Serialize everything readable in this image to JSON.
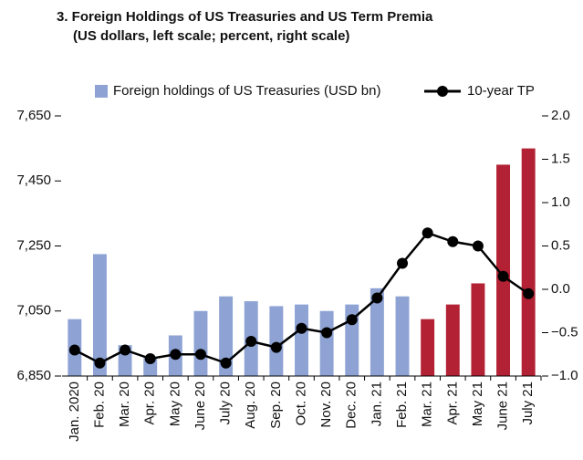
{
  "chart_data": {
    "type": "bar_line",
    "title": "3. Foreign Holdings of US Treasuries and US Term Premia",
    "subtitle": "(US dollars, left scale; percent, right scale)",
    "categories": [
      "Jan. 2020",
      "Feb. 20",
      "Mar. 20",
      "Apr. 20",
      "May 20",
      "June 20",
      "July 20",
      "Aug. 20",
      "Sep. 20",
      "Oct. 20",
      "Nov. 20",
      "Dec. 20",
      "Jan. 21",
      "Feb. 21",
      "Mar. 21",
      "Apr. 21",
      "May 21",
      "June 21",
      "July 21"
    ],
    "series": [
      {
        "name": "Foreign holdings of US Treasuries (USD bn)",
        "type": "bar",
        "color": "#8ea3d4",
        "colors": [
          "#8ea3d4",
          "#8ea3d4",
          "#8ea3d4",
          "#8ea3d4",
          "#8ea3d4",
          "#8ea3d4",
          "#8ea3d4",
          "#8ea3d4",
          "#8ea3d4",
          "#8ea3d4",
          "#8ea3d4",
          "#8ea3d4",
          "#8ea3d4",
          "#8ea3d4",
          "#b22234",
          "#b22234",
          "#b22234",
          "#b22234",
          "#b22234"
        ],
        "values": [
          7025,
          7225,
          6945,
          6905,
          6975,
          7050,
          7095,
          7080,
          7065,
          7070,
          7050,
          7070,
          7120,
          7095,
          7025,
          7070,
          7135,
          7500,
          7550
        ]
      },
      {
        "name": "10-year TP",
        "type": "line",
        "axis": "y2",
        "color": "#000000",
        "values": [
          -0.7,
          -0.85,
          -0.7,
          -0.8,
          -0.75,
          -0.75,
          -0.85,
          -0.6,
          -0.67,
          -0.45,
          -0.5,
          -0.35,
          -0.1,
          0.3,
          0.65,
          0.55,
          0.5,
          0.15,
          -0.05
        ]
      }
    ],
    "ylim": [
      6850,
      7650
    ],
    "yticks": [
      {
        "value": 6850,
        "label": "6,850"
      },
      {
        "value": 7050,
        "label": "7,050"
      },
      {
        "value": 7250,
        "label": "7,250"
      },
      {
        "value": 7450,
        "label": "7,450"
      },
      {
        "value": 7650,
        "label": "7,650"
      }
    ],
    "y2lim": [
      -1,
      2
    ],
    "y2ticks": [
      {
        "value": -1,
        "label": "−1.0"
      },
      {
        "value": -0.5,
        "label": "−0.5"
      },
      {
        "value": 0,
        "label": "0.0"
      },
      {
        "value": 0.5,
        "label": "0.5"
      },
      {
        "value": 1,
        "label": "1.0"
      },
      {
        "value": 1.5,
        "label": "1.5"
      },
      {
        "value": 2,
        "label": "2.0"
      }
    ]
  }
}
